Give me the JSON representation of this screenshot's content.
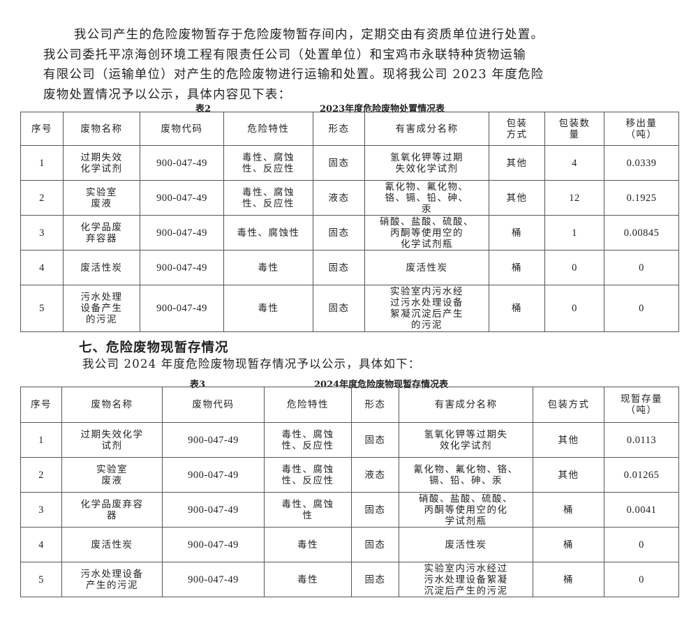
{
  "intro": {
    "line1": "我公司产生的危险废物暂存于危险废物暂存间内，定期交由有资质单位进行处置。",
    "line2": "我公司委托平凉海创环境工程有限责任公司（处置单位）和宝鸡市永联特种货物运输",
    "line3": "有限公司（运输单位）对产生的危险废物进行运输和处置。现将我公司 2023 年度危险",
    "line4": "废物处置情况予以公示，具体内容见下表："
  },
  "table2": {
    "label": "表2",
    "title": "2023年度危险废物处置情况表",
    "headers": [
      "序号",
      "废物名称",
      "废物代码",
      "危险特性",
      "形态",
      "有害成分名称",
      "包装\n方式",
      "包装数\n量",
      "移出量\n（吨）"
    ],
    "rows": [
      [
        "1",
        "过期失效\n化学试剂",
        "900-047-49",
        "毒性、腐蚀\n性、反应性",
        "固态",
        "氢氧化钾等过期\n失效化学试剂",
        "其他",
        "4",
        "0.0339"
      ],
      [
        "2",
        "实验室\n废液",
        "900-047-49",
        "毒性、腐蚀\n性、反应性",
        "液态",
        "氰化物、氟化物、\n铬、镉、铅、砷、\n汞",
        "其他",
        "12",
        "0.1925"
      ],
      [
        "3",
        "化学品废\n弃容器",
        "900-047-49",
        "毒性、腐蚀性",
        "固态",
        "硝酸、盐酸、硫酸、\n丙酮等使用空的\n化学试剂瓶",
        "桶",
        "1",
        "0.00845"
      ],
      [
        "4",
        "废活性炭",
        "900-047-49",
        "毒性",
        "固态",
        "废活性炭",
        "桶",
        "0",
        "0"
      ],
      [
        "5",
        "污水处理\n设备产生\n的污泥",
        "900-047-49",
        "毒性",
        "固态",
        "实验室内污水经\n过污水处理设备\n絮凝沉淀后产生\n的污泥",
        "桶",
        "0",
        "0"
      ]
    ]
  },
  "section7": {
    "heading": "七、危险废物现暂存情况",
    "para": "我公司 2024 年度危险废物现暂存情况予以公示，具体如下："
  },
  "table3": {
    "label": "表3",
    "title": "2024年度危险废物现暂存情况表",
    "headers": [
      "序号",
      "废物名称",
      "废物代码",
      "危险特性",
      "形态",
      "有害成分名称",
      "包装方式",
      "现暂存量\n（吨）"
    ],
    "rows": [
      [
        "1",
        "过期失效化学\n试剂",
        "900-047-49",
        "毒性、腐蚀\n性、反应性",
        "固态",
        "氢氧化钾等过期失\n效化学试剂",
        "其他",
        "0.0113"
      ],
      [
        "2",
        "实验室\n废液",
        "900-047-49",
        "毒性、腐蚀\n性、反应性",
        "液态",
        "氰化物、氟化物、铬、\n镉、铅、砷、汞",
        "其他",
        "0.01265"
      ],
      [
        "3",
        "化学品废弃容\n器",
        "900-047-49",
        "毒性、腐蚀\n性",
        "固态",
        "硝酸、盐酸、硫酸、\n丙酮等使用空的化\n学试剂瓶",
        "桶",
        "0.0041"
      ],
      [
        "4",
        "废活性炭",
        "900-047-49",
        "毒性",
        "固态",
        "废活性炭",
        "桶",
        "0"
      ],
      [
        "5",
        "污水处理设备\n产生的污泥",
        "900-047-49",
        "毒性",
        "固态",
        "实验室内污水经过\n污水处理设备絮凝\n沉淀后产生的污泥",
        "桶",
        "0"
      ]
    ]
  }
}
